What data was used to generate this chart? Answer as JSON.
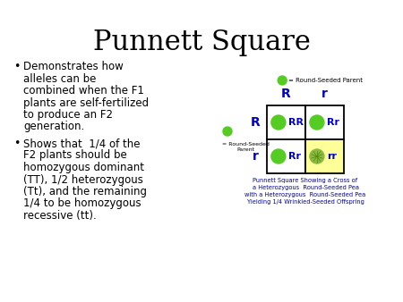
{
  "title": "Punnett Square",
  "background_color": "#ffffff",
  "title_fontsize": 22,
  "title_font": "serif",
  "yellow_color": "#ffff99",
  "cell_text_color": "#0000cc",
  "caption_color": "#0000aa",
  "caption_text": "Punnett Square Showing a Cross of\na Heterozygous  Round-Seeded Pea\nwith a Heterozygous  Round-Seeded Pea\nYielding 1/4 Wrinkled-Seeded Offspring",
  "legend_text": "= Round-Seeded Parent",
  "side_legend_text": "= Round-Seeded\nParent",
  "bullet1_lines": [
    "Demonstrates how",
    "alleles can be",
    "combined when the F1",
    "plants are self-fertilized",
    "to produce an F2",
    "generation."
  ],
  "bullet2_lines": [
    "Shows that  1/4 of the",
    "F2 plants should be",
    "homozygous dominant",
    "(TT), 1/2 heterozygous",
    "(Tt), and the remaining",
    "1/4 to be homozygous",
    "recessive (tt)."
  ],
  "col_labels": [
    "R",
    "r"
  ],
  "row_labels": [
    "R",
    "r"
  ],
  "cell_labels": [
    [
      "RR",
      "Rr"
    ],
    [
      "Rr",
      "rr"
    ]
  ],
  "cell_wrinkled": [
    [
      false,
      false
    ],
    [
      false,
      true
    ]
  ],
  "cell_colors": [
    [
      "white",
      "white"
    ],
    [
      "white",
      "#ffff99"
    ]
  ],
  "pea_green": "#55cc22",
  "pea_wrinkled": "#88bb44"
}
